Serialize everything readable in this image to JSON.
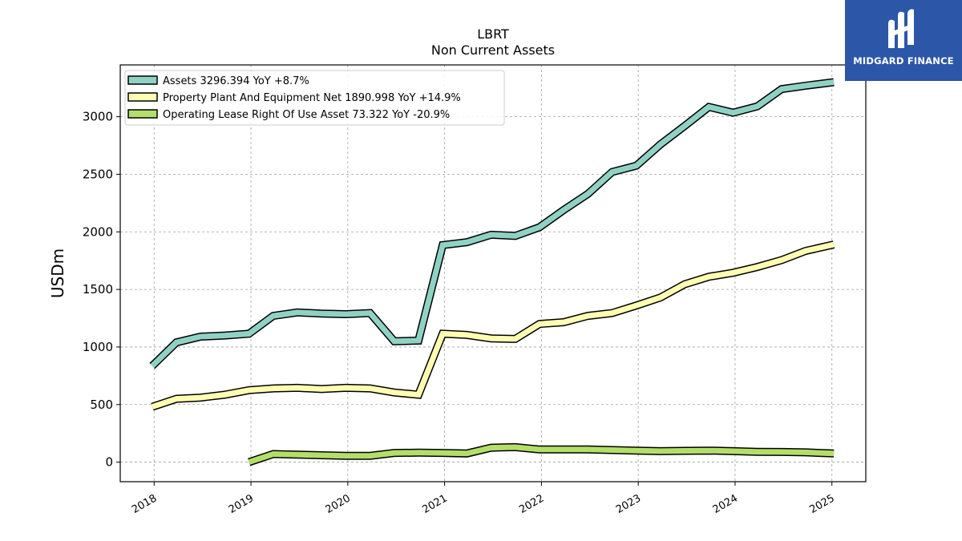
{
  "chart_data": {
    "type": "line",
    "title": "LBRT",
    "subtitle": "Non Current  Assets",
    "ylabel": "USDm",
    "xlim": [
      2017.65,
      2025.35
    ],
    "ylim": [
      -170,
      3450
    ],
    "yticks": [
      0,
      500,
      1000,
      1500,
      2000,
      2500,
      3000
    ],
    "xticks": [
      2018,
      2019,
      2020,
      2021,
      2022,
      2023,
      2024,
      2025
    ],
    "grid": true,
    "legend_position": "top-left",
    "series": [
      {
        "name": "Assets  3296.394 YoY +8.7%",
        "color": "#8fd2c4",
        "x": [
          2017.98,
          2018.23,
          2018.48,
          2018.73,
          2018.98,
          2019.23,
          2019.48,
          2019.73,
          2019.98,
          2020.23,
          2020.48,
          2020.73,
          2020.98,
          2021.23,
          2021.48,
          2021.73,
          2021.98,
          2022.23,
          2022.48,
          2022.73,
          2022.98,
          2023.23,
          2023.48,
          2023.73,
          2023.98,
          2024.23,
          2024.48,
          2024.73,
          2025.02
        ],
        "values": [
          835,
          1040,
          1090,
          1100,
          1115,
          1270,
          1300,
          1290,
          1285,
          1295,
          1050,
          1055,
          1885,
          1910,
          1975,
          1965,
          2040,
          2190,
          2330,
          2520,
          2575,
          2760,
          2920,
          3085,
          3035,
          3090,
          3240,
          3270,
          3300
        ]
      },
      {
        "name": "Property Plant And Equipment Net  1890.998 YoY +14.9%",
        "color": "#ffffb3",
        "x": [
          2017.98,
          2018.23,
          2018.48,
          2018.73,
          2018.98,
          2019.23,
          2019.48,
          2019.73,
          2019.98,
          2020.23,
          2020.48,
          2020.73,
          2020.98,
          2021.23,
          2021.48,
          2021.73,
          2021.98,
          2022.23,
          2022.48,
          2022.73,
          2022.98,
          2023.23,
          2023.48,
          2023.73,
          2023.98,
          2024.23,
          2024.48,
          2024.73,
          2025.02
        ],
        "values": [
          480,
          550,
          560,
          585,
          625,
          640,
          645,
          635,
          645,
          640,
          605,
          585,
          1115,
          1105,
          1075,
          1070,
          1200,
          1215,
          1270,
          1295,
          1360,
          1430,
          1545,
          1610,
          1645,
          1695,
          1755,
          1835,
          1890
        ]
      },
      {
        "name": "Operating Lease Right Of Use Asset  73.322 YoY -20.9%",
        "color": "#b3de69",
        "x": [
          2018.98,
          2019.23,
          2019.48,
          2019.73,
          2019.98,
          2020.23,
          2020.48,
          2020.73,
          2020.98,
          2021.23,
          2021.48,
          2021.73,
          2021.98,
          2022.23,
          2022.48,
          2022.73,
          2022.98,
          2023.23,
          2023.48,
          2023.73,
          2023.98,
          2024.23,
          2024.48,
          2024.73,
          2025.02
        ],
        "values": [
          0,
          70,
          65,
          60,
          55,
          55,
          80,
          82,
          80,
          75,
          125,
          130,
          110,
          110,
          110,
          105,
          100,
          95,
          98,
          100,
          95,
          90,
          88,
          85,
          75
        ]
      }
    ]
  },
  "logo": {
    "text": "MIDGARD FINANCE",
    "background": "#2c56a8",
    "icon": "midgard-logo-icon"
  }
}
